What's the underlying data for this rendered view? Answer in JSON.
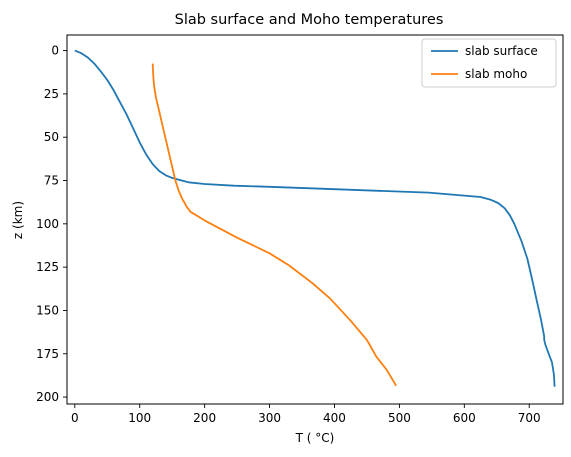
{
  "chart_data": {
    "type": "line",
    "title": "Slab surface and Moho temperatures",
    "xlabel": "T ($^\\circ$C)",
    "xlabel_display": "T ( °C)",
    "ylabel": "z (km)",
    "xlim": [
      -12,
      752
    ],
    "ylim": [
      204,
      -9
    ],
    "y_inverted": true,
    "xticks": [
      0,
      100,
      200,
      300,
      400,
      500,
      600,
      700
    ],
    "yticks": [
      0,
      25,
      50,
      75,
      100,
      125,
      150,
      175,
      200
    ],
    "grid": false,
    "legend_position": "top-right",
    "series": [
      {
        "name": "slab surface",
        "color": "#1f77b4",
        "points": [
          [
            0,
            0
          ],
          [
            10,
            1.5
          ],
          [
            20,
            4
          ],
          [
            30,
            7.5
          ],
          [
            40,
            12
          ],
          [
            50,
            17
          ],
          [
            60,
            23
          ],
          [
            70,
            30
          ],
          [
            80,
            37
          ],
          [
            90,
            45
          ],
          [
            100,
            53
          ],
          [
            110,
            60
          ],
          [
            120,
            65.5
          ],
          [
            130,
            69.5
          ],
          [
            140,
            72
          ],
          [
            150,
            73.5
          ],
          [
            160,
            74.5
          ],
          [
            175,
            76
          ],
          [
            200,
            77
          ],
          [
            245,
            78
          ],
          [
            300,
            78.6
          ],
          [
            400,
            80
          ],
          [
            545,
            82
          ],
          [
            625,
            84.5
          ],
          [
            640,
            86
          ],
          [
            652,
            88
          ],
          [
            662,
            91
          ],
          [
            670,
            95
          ],
          [
            677,
            100
          ],
          [
            688,
            110
          ],
          [
            697,
            120
          ],
          [
            705,
            133
          ],
          [
            712,
            145
          ],
          [
            718,
            155
          ],
          [
            723,
            165
          ],
          [
            723,
            167
          ],
          [
            725,
            170
          ],
          [
            730,
            175
          ],
          [
            735,
            180
          ],
          [
            738,
            187
          ],
          [
            739,
            194
          ]
        ]
      },
      {
        "name": "slab moho",
        "color": "#ff7f0e",
        "points": [
          [
            120,
            7.5
          ],
          [
            121,
            15
          ],
          [
            122,
            20
          ],
          [
            125,
            27
          ],
          [
            130,
            35
          ],
          [
            135,
            43
          ],
          [
            140,
            51
          ],
          [
            145,
            59
          ],
          [
            150,
            67
          ],
          [
            155,
            75
          ],
          [
            160,
            81
          ],
          [
            166,
            86
          ],
          [
            170,
            88.5
          ],
          [
            172,
            90
          ],
          [
            178,
            93
          ],
          [
            200,
            98
          ],
          [
            250,
            108
          ],
          [
            300,
            117
          ],
          [
            330,
            124
          ],
          [
            365,
            134
          ],
          [
            393,
            143
          ],
          [
            425,
            156
          ],
          [
            450,
            167
          ],
          [
            465,
            177
          ],
          [
            480,
            184
          ],
          [
            495,
            193.5
          ]
        ]
      }
    ]
  }
}
